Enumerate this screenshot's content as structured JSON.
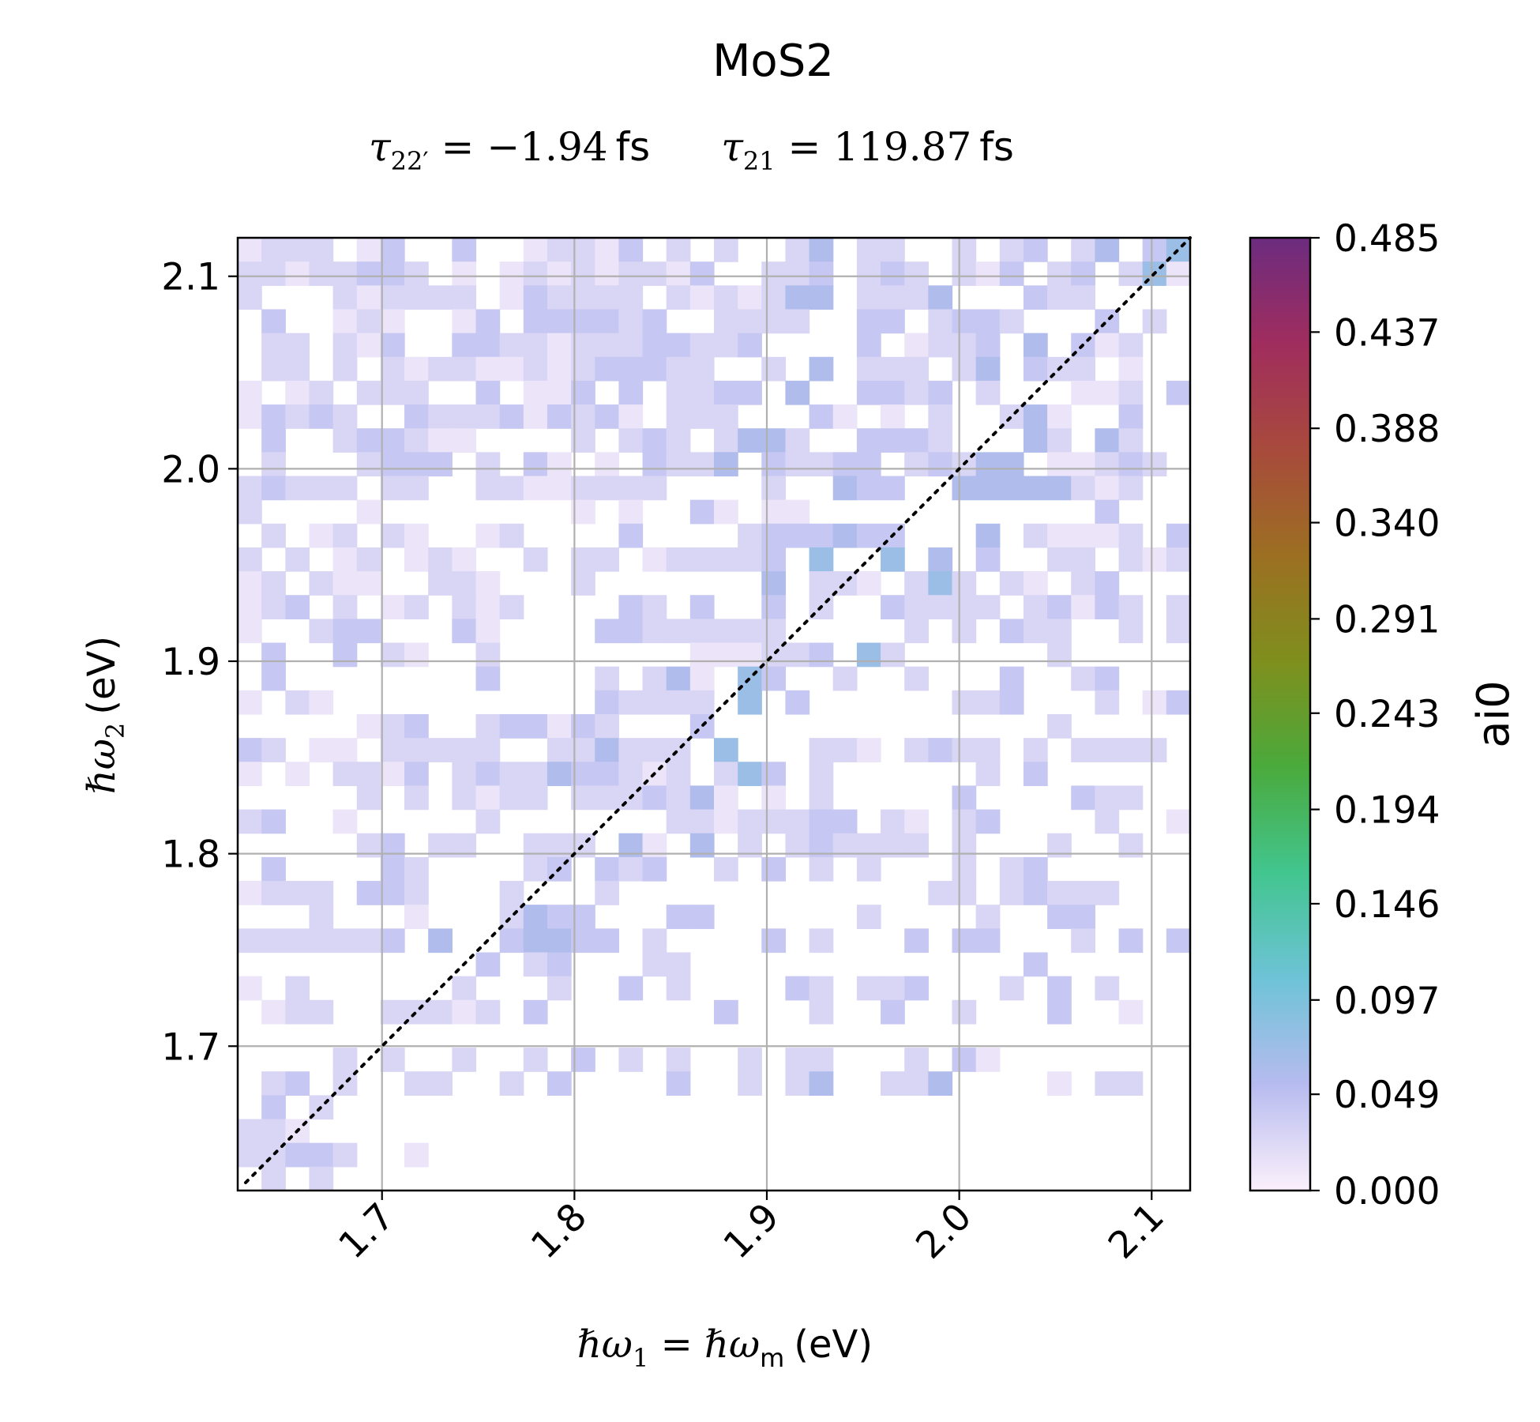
{
  "chart_data": {
    "type": "heatmap",
    "title": "MoS2",
    "subtitle": {
      "tau_left": {
        "symbol": "τ",
        "sub": "22′",
        "eq": " = ",
        "value": "−1.94",
        "unit": "fs"
      },
      "tau_right": {
        "symbol": "τ",
        "sub": "21",
        "eq": " = ",
        "value": "119.87",
        "unit": "fs"
      }
    },
    "xlabel": {
      "lhs_sym": "ℏω",
      "lhs_sub": "1",
      "eq": " = ",
      "rhs_sym": "ℏω",
      "rhs_sub": "m",
      "unit": "(eV)"
    },
    "ylabel": {
      "sym": "ℏω",
      "sub": "2",
      "unit": "(eV)"
    },
    "xlim": [
      1.625,
      2.12
    ],
    "ylim": [
      1.625,
      2.12
    ],
    "xticks": [
      "1.7",
      "1.8",
      "1.9",
      "2.0",
      "2.1"
    ],
    "yticks": [
      "1.7",
      "1.8",
      "1.9",
      "2.0",
      "2.1"
    ],
    "grid": true,
    "diagonal": "dotted",
    "colorbar": {
      "label": "ai0",
      "min": 0.0,
      "max": 0.485,
      "ticks": [
        "0.000",
        "0.049",
        "0.097",
        "0.146",
        "0.194",
        "0.243",
        "0.291",
        "0.340",
        "0.388",
        "0.437",
        "0.485"
      ],
      "colors": [
        "#fbf0fb",
        "#b7bbef",
        "#6ec3d7",
        "#42c58f",
        "#4aaa3c",
        "#7f8f1d",
        "#9c6f22",
        "#a84a3c",
        "#a02d5e",
        "#6c2c7f"
      ]
    },
    "grid_size": 40,
    "value_legend": "0:0.000 1:0.012 2:0.027 3:0.042 4:0.060 5:0.075",
    "rows_top_to_bottom": [
      "1222013003001221302020024022002023024035",
      "2212233201012121221300223023202130230251",
      "2000212222013222202121244022240003220000",
      "0300121001303333230022220033023320003020",
      "0220213003322122233223000030122304031200",
      "0220202122112123332200204022202403220100",
      "1012022200301130302233040033230200011203",
      "1323200322231323102220003101020024100300",
      "0300233211000020232024420033320004204200",
      "0200023330203101032240322330232440112320",
      "2322202200221122220000200433004444421200",
      "2000010000000010100310110000000000003000",
      "0201202100120000300002333433000402111203",
      "2020120121002022012222305005040300220212",
      "1202110022100020000000402210252021023000",
      "1230201202120000320300302003222202313202",
      "1002330003100003322222200000202032200202",
      "0300302100200000000111223052000000200000",
      "0300000000300002024105300200200030023000",
      "1021000000000003222205030000002230002013",
      "0000012300233132000300000000000000200000",
      "3201102222200224222050002210232202022220",
      "1010221302322433212025302000000203000000",
      "0000020202122022232410102000003000032200",
      "2300100000200000002212223302102300002001",
      "0000023022002220410402023222202000200200",
      "0300003200002303230020302020002023000000",
      "1222033200020002000000000000022023222000",
      "0002000100024330003300000020000200330000",
      "2222223040034433020000302000303300020303",
      "0000000000302300022000000000000003000000",
      "1020000002000200302000032022300020302000",
      "0122002221203000000030002003002000300100",
      "0000000000000000000000000000000000000000",
      "0000202002002030202002022000203100000000",
      "0230200220020300003002024002240000102200",
      "0302000000000000000000000000000000000000",
      "2210000000000000000000000000000000000000",
      "2233200100000000000000000000000000000000",
      "0202000000000000000000000000000000000000"
    ]
  }
}
